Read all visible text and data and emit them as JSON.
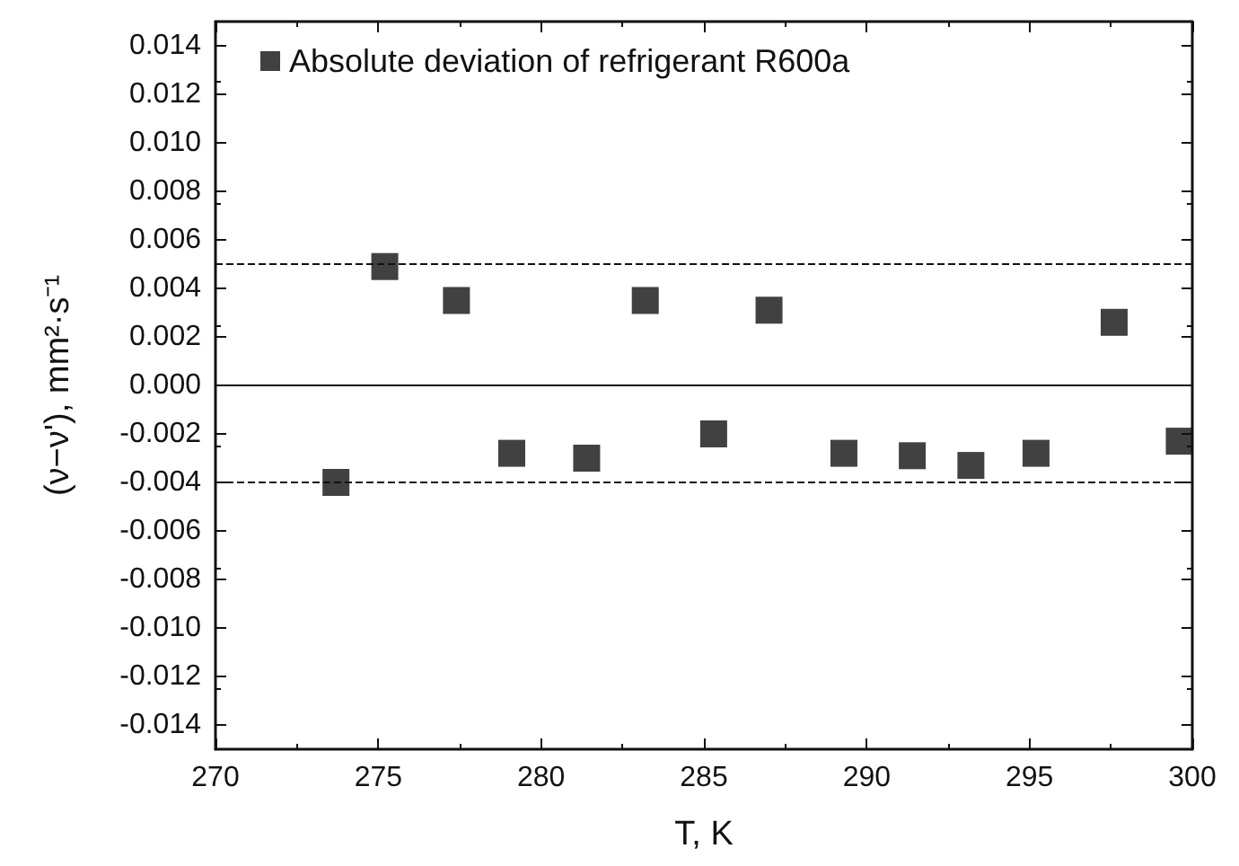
{
  "chart_data": {
    "type": "scatter",
    "xlabel": "T, K",
    "ylabel": "(ν−ν'), mm²·s⁻¹",
    "series": [
      {
        "name": "Absolute deviation of refrigerant R600a",
        "color": "#111111",
        "x": [
          273.7,
          275.2,
          277.4,
          279.1,
          281.4,
          283.2,
          285.3,
          287.0,
          289.3,
          291.4,
          293.2,
          295.2,
          297.6,
          299.6
        ],
        "values": [
          -0.004,
          0.0049,
          0.0035,
          -0.0028,
          -0.003,
          0.0035,
          -0.002,
          0.0031,
          -0.0028,
          -0.0029,
          -0.0033,
          -0.0028,
          0.0026,
          -0.0023
        ]
      }
    ],
    "marker": "square",
    "legend": "top left",
    "grid": false,
    "xlim": [
      270,
      300
    ],
    "xticks": [
      270,
      275,
      280,
      285,
      290,
      295,
      300
    ],
    "ylim": [
      -0.015,
      0.015
    ],
    "yticks": [
      {
        "value": -0.014,
        "label": "-0.014"
      },
      {
        "value": -0.012,
        "label": "-0.012"
      },
      {
        "value": -0.01,
        "label": "-0.010"
      },
      {
        "value": -0.008,
        "label": "-0.008"
      },
      {
        "value": -0.006,
        "label": "-0.006"
      },
      {
        "value": -0.004,
        "label": "-0.004"
      },
      {
        "value": -0.002,
        "label": "-0.002"
      },
      {
        "value": 0,
        "label": "0.000"
      },
      {
        "value": 0.002,
        "label": "0.002"
      },
      {
        "value": 0.004,
        "label": "0.004"
      },
      {
        "value": 0.006,
        "label": "0.006"
      },
      {
        "value": 0.008,
        "label": "0.008"
      },
      {
        "value": 0.01,
        "label": "0.010"
      },
      {
        "value": 0.012,
        "label": "0.012"
      },
      {
        "value": 0.014,
        "label": "0.014"
      }
    ],
    "ref_lines": [
      {
        "axis": "y",
        "value": 0.005,
        "line_style": "dashed"
      },
      {
        "axis": "y",
        "value": 0,
        "line_style": "solid"
      },
      {
        "axis": "y",
        "value": -0.004,
        "line_style": "dashed"
      }
    ]
  }
}
